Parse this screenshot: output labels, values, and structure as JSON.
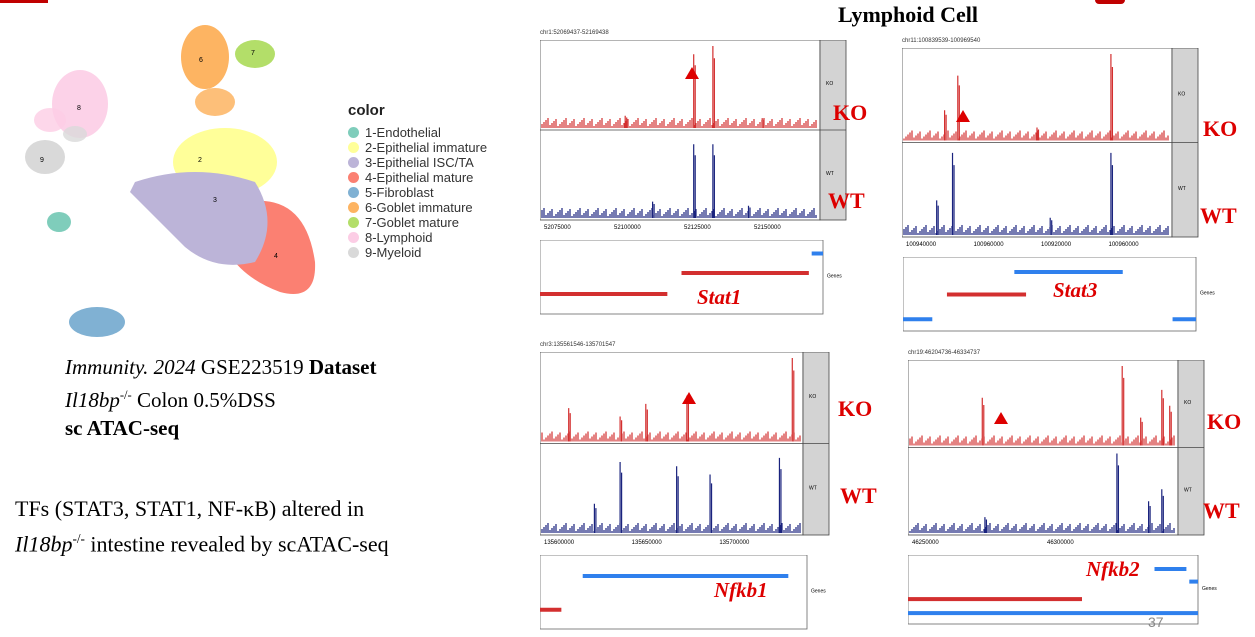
{
  "title": "Lymphoid Cell",
  "page_number": "37",
  "legend": {
    "title": "color",
    "items": [
      {
        "label": "1-Endothelial",
        "color": "#7fcdbb"
      },
      {
        "label": "2-Epithelial immature",
        "color": "#ffff99"
      },
      {
        "label": "3-Epithelial ISC/TA",
        "color": "#bcb4d8"
      },
      {
        "label": "4-Epithelial mature",
        "color": "#fb8072"
      },
      {
        "label": "5-Fibroblast",
        "color": "#80b1d3"
      },
      {
        "label": "6-Goblet immature",
        "color": "#fdb462"
      },
      {
        "label": "7-Goblet mature",
        "color": "#b3de69"
      },
      {
        "label": "8-Lymphoid",
        "color": "#fccde5"
      },
      {
        "label": "9-Myeloid",
        "color": "#d9d9d9"
      }
    ]
  },
  "umap_labels": [
    "2",
    "3",
    "4",
    "6",
    "7",
    "8",
    "9"
  ],
  "dataset": {
    "journal": "Immunity. 2024",
    "geo": " GSE223519 ",
    "dataset_word": "Dataset",
    "gene": "Il18bp",
    "gene_sup": "-/-",
    "condition": " Colon 0.5%DSS",
    "method": "sc ATAC-seq"
  },
  "tfs": {
    "line1": "TFs (STAT3, STAT1, NF-κB) altered in",
    "gene": "Il18bp",
    "gene_sup": "-/-",
    "line2_rest": " intestine revealed by scATAC-seq"
  },
  "panels": [
    {
      "coords": "chr1:52069437-52169438",
      "ticks": [
        "52075000",
        "52100000",
        "52125000",
        "52150000"
      ],
      "gene": "Stat1",
      "ko": "KO",
      "wt": "WT",
      "track_ko": "KO",
      "track_wt": "WT",
      "genes_label": "Genes"
    },
    {
      "coords": "chr11:100839539-100969540",
      "ticks": [
        "100940000",
        "100960000",
        "100920000",
        "100960000"
      ],
      "gene": "Stat3",
      "ko": "KO",
      "wt": "WT",
      "track_ko": "KO",
      "track_wt": "WT",
      "genes_label": "Genes"
    },
    {
      "coords": "chr3:135561546-135701547",
      "ticks": [
        "135600000",
        "135650000",
        "135700000"
      ],
      "gene": "Nfkb1",
      "ko": "KO",
      "wt": "WT",
      "track_ko": "KO",
      "track_wt": "WT",
      "genes_label": "Genes"
    },
    {
      "coords": "chr19:46204736-46334737",
      "ticks": [
        "46250000",
        "46300000"
      ],
      "gene": "Nfkb2",
      "ko": "KO",
      "wt": "WT",
      "track_ko": "KO",
      "track_wt": "WT",
      "genes_label": "Genes"
    }
  ],
  "colors": {
    "ko": "#d32f2f",
    "wt": "#1a237e",
    "gene_blue": "#2f80ed",
    "accent_red": "#dd0000"
  }
}
